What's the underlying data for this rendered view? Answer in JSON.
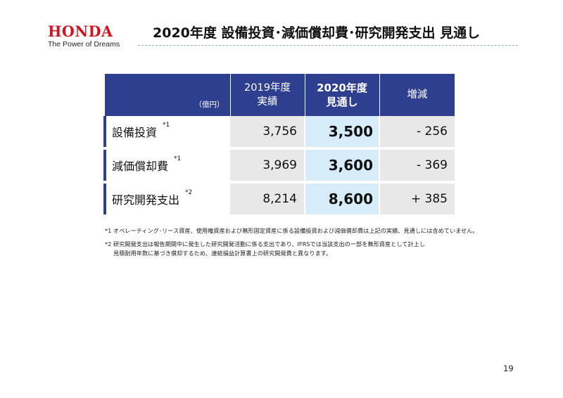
{
  "brand": {
    "name": "HONDA",
    "tagline": "The Power of Dreams",
    "color": "#d2141e"
  },
  "slide_title": "2020年度 設備投資･減価償却費･研究開発支出 見通し",
  "table": {
    "unit": "（億円）",
    "headers": {
      "y2019": [
        "2019年度",
        "実績"
      ],
      "y2020": [
        "2020年度",
        "見通し"
      ],
      "diff": "増減"
    },
    "rows": [
      {
        "label": "設備投資",
        "note": "*1",
        "y2019": "3,756",
        "y2020": "3,500",
        "diff": "- 256"
      },
      {
        "label": "減価償却費",
        "note": "*1",
        "y2019": "3,969",
        "y2020": "3,600",
        "diff": "- 369"
      },
      {
        "label": "研究開発支出",
        "note": "*2",
        "y2019": "8,214",
        "y2020": "8,600",
        "diff": "+ 385"
      }
    ],
    "colors": {
      "header_bg": "#2e3f8f",
      "highlight_bg": "#d6ecf8",
      "cell_bg": "#e8e8e8"
    }
  },
  "footnotes": {
    "n1": "*1 オペレーティング･リース資産、使用権資産および無形固定資産に係る設備投資および減価償却費は上記の実績、見通しには含めていません。",
    "n2_line1": "*2 研究開発支出は報告期間中に発生した研究開発活動に係る支出であり、IFRSでは当該支出の一部を無形資産として計上し",
    "n2_line2": "見積耐用年数に基づき償却するため、連結損益計算書上の研究開発費と異なります。"
  },
  "page_number": "19"
}
